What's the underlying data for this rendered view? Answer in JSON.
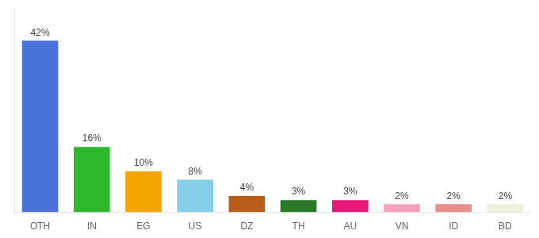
{
  "chart_data": {
    "type": "bar",
    "categories": [
      "OTH",
      "IN",
      "EG",
      "US",
      "DZ",
      "TH",
      "AU",
      "VN",
      "ID",
      "BD"
    ],
    "values": [
      42,
      16,
      10,
      8,
      4,
      3,
      3,
      2,
      2,
      2
    ],
    "value_labels": [
      "42%",
      "16%",
      "10%",
      "8%",
      "4%",
      "3%",
      "3%",
      "2%",
      "2%",
      "2%"
    ],
    "colors": [
      "#4a72d8",
      "#2db82d",
      "#f5a500",
      "#87ceeb",
      "#b85c1a",
      "#2a7a2a",
      "#e8187a",
      "#f9a0c0",
      "#e89090",
      "#f0eedc"
    ],
    "ylim": [
      0,
      50
    ],
    "grid": false,
    "data_labels": true,
    "tick_labels": "x"
  }
}
